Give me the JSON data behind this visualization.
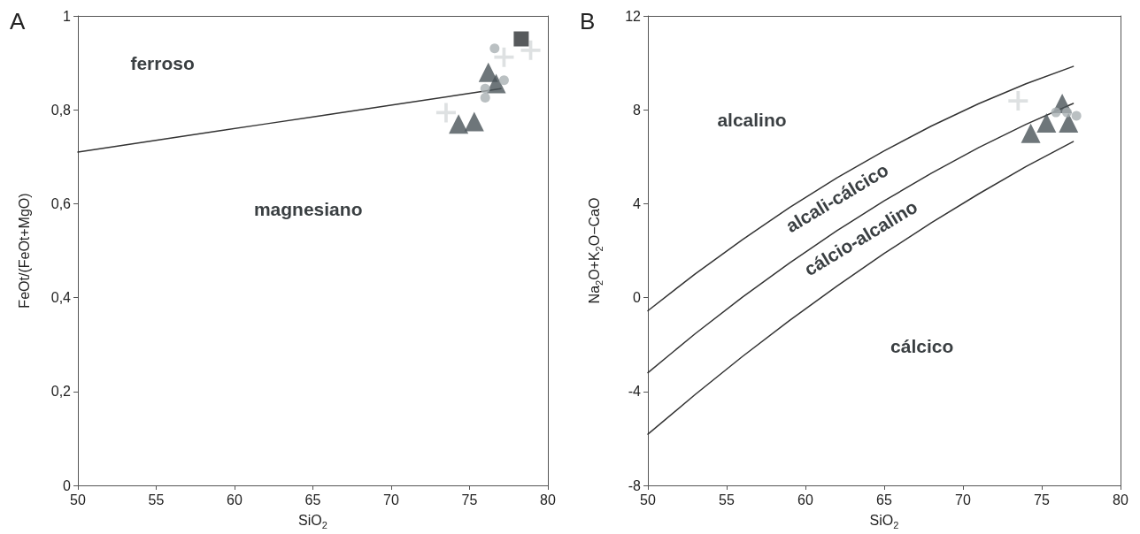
{
  "chart_data": [
    {
      "type": "scatter",
      "title": "A",
      "xlabel": "SiO$_{2}$",
      "ylabel": "FeOt/(FeOt+MgO)",
      "xlim": [
        50,
        80
      ],
      "ylim": [
        0,
        1
      ],
      "xticks": [
        50,
        55,
        60,
        65,
        70,
        75,
        80
      ],
      "yticks": [
        0,
        {
          "value": 0.2,
          "label": "0,2"
        },
        {
          "value": 0.4,
          "label": "0,4"
        },
        {
          "value": 0.6,
          "label": "0,6"
        },
        {
          "value": 0.8,
          "label": "0,8"
        },
        1
      ],
      "grid": false,
      "annotations": [
        "ferroso",
        "magnesiano"
      ],
      "series": [
        {
          "type": "line",
          "marker": "none",
          "color": "#333333",
          "x": [
            50,
            53,
            56,
            59,
            62,
            65,
            68,
            71,
            74,
            77
          ],
          "values": [
            0.71,
            0.725,
            0.74,
            0.755,
            0.77,
            0.785,
            0.8,
            0.815,
            0.83,
            0.845
          ]
        },
        {
          "marker": "triangle",
          "color": "#4a5459",
          "x": [
            74.3,
            75.3,
            76.2,
            76.7
          ],
          "values": [
            0.77,
            0.775,
            0.88,
            0.856
          ]
        },
        {
          "marker": "circle",
          "color": "#a9b0b3",
          "x": [
            76.6,
            77.2,
            76.0,
            76.0
          ],
          "values": [
            0.931,
            0.863,
            0.845,
            0.826
          ]
        },
        {
          "marker": "cross",
          "color": "#d6dadb",
          "x": [
            73.5,
            77.2,
            78.9
          ],
          "values": [
            0.794,
            0.912,
            0.927
          ]
        },
        {
          "marker": "square",
          "color": "#2d3133",
          "x": [
            78.3
          ],
          "values": [
            0.951
          ]
        }
      ]
    },
    {
      "type": "scatter",
      "title": "B",
      "xlabel": "SiO$_{2}$",
      "ylabel": "Na$_{2}$O+K$_{2}$O−CaO",
      "xlim": [
        50,
        80
      ],
      "ylim": [
        -8,
        12
      ],
      "xticks": [
        50,
        55,
        60,
        65,
        70,
        75,
        80
      ],
      "yticks": [
        -8,
        -4,
        0,
        4,
        8,
        12
      ],
      "grid": false,
      "annotations": [
        "alcalino",
        "alcali-cálcico",
        "cálcio-alcalino",
        "cálcico"
      ],
      "series": [
        {
          "type": "line",
          "marker": "none",
          "color": "#333333",
          "x": [
            50,
            53,
            56,
            59,
            62,
            65,
            68,
            71,
            74,
            77
          ],
          "values": [
            -0.56,
            1.01,
            2.47,
            3.84,
            5.1,
            6.25,
            7.31,
            8.26,
            9.11,
            9.85
          ]
        },
        {
          "type": "line",
          "marker": "none",
          "color": "#333333",
          "x": [
            50,
            53,
            56,
            59,
            62,
            65,
            68,
            71,
            74,
            77
          ],
          "values": [
            -3.2,
            -1.54,
            0.02,
            1.48,
            2.85,
            4.12,
            5.3,
            6.39,
            7.38,
            8.27
          ]
        },
        {
          "type": "line",
          "marker": "none",
          "color": "#333333",
          "x": [
            50,
            53,
            56,
            59,
            62,
            65,
            68,
            71,
            74,
            77
          ],
          "values": [
            -5.82,
            -4.13,
            -2.51,
            -0.97,
            0.49,
            1.88,
            3.19,
            4.42,
            5.58,
            6.65
          ]
        },
        {
          "marker": "triangle",
          "color": "#4a5459",
          "x": [
            74.3,
            75.3,
            76.3,
            76.7
          ],
          "values": [
            7.0,
            7.44,
            8.27,
            7.44
          ]
        },
        {
          "marker": "circle",
          "color": "#a9b0b3",
          "x": [
            75.9,
            76.6,
            77.2
          ],
          "values": [
            7.89,
            7.89,
            7.74
          ]
        },
        {
          "marker": "cross",
          "color": "#d6dadb",
          "x": [
            73.5
          ],
          "values": [
            8.38
          ]
        }
      ]
    }
  ]
}
